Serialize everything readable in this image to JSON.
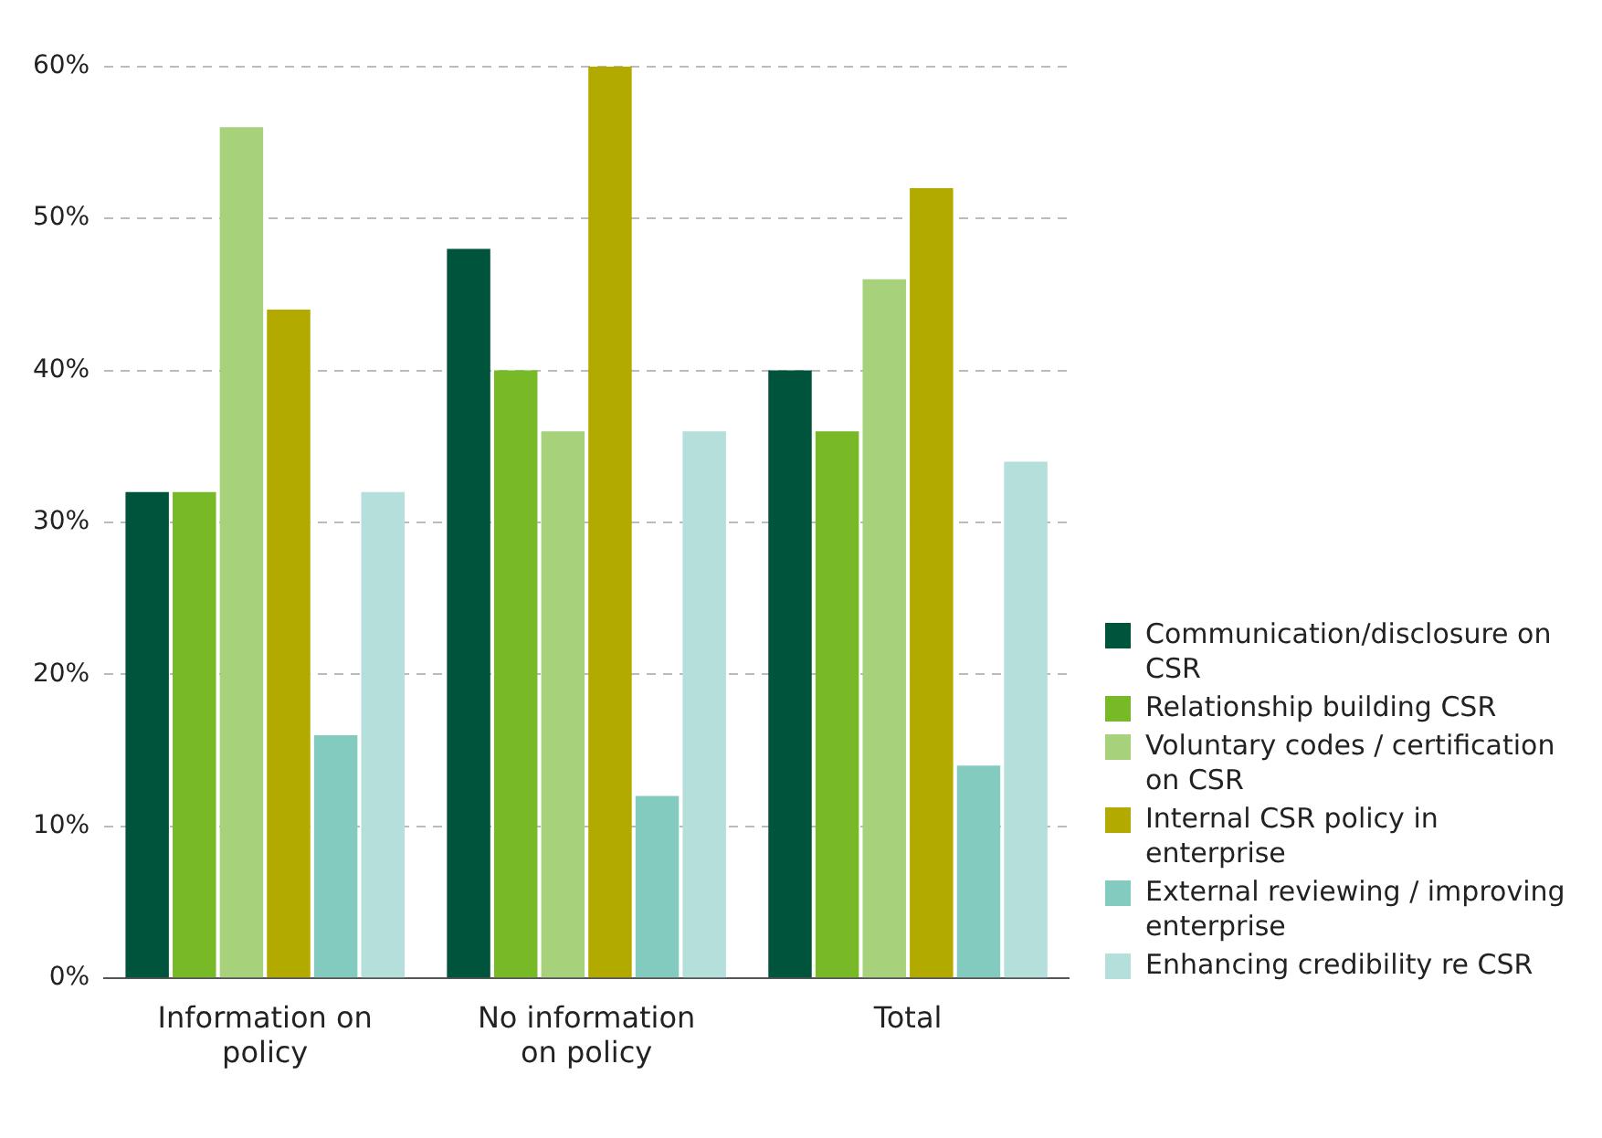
{
  "chart_data": {
    "type": "bar",
    "categories": [
      "Information on policy",
      "No information on policy",
      "Total"
    ],
    "series": [
      {
        "name": "Communication/disclosure on CSR",
        "color": "#00543c",
        "values": [
          32,
          48,
          40
        ]
      },
      {
        "name": "Relationship building CSR",
        "color": "#78b928",
        "values": [
          32,
          40,
          36
        ]
      },
      {
        "name": "Voluntary codes / certification on CSR",
        "color": "#a8d17c",
        "values": [
          56,
          36,
          46
        ]
      },
      {
        "name": "Internal CSR policy in enterprise",
        "color": "#b3aa00",
        "values": [
          44,
          60,
          52
        ]
      },
      {
        "name": "External reviewing / improving enterprise",
        "color": "#84cbbf",
        "values": [
          16,
          12,
          14
        ]
      },
      {
        "name": "Enhancing credibility re CSR",
        "color": "#b5dfdb",
        "values": [
          32,
          36,
          34
        ]
      }
    ],
    "ylim": [
      0,
      60
    ],
    "yticks": [
      {
        "value": 0,
        "label": "0%"
      },
      {
        "value": 10,
        "label": "10%"
      },
      {
        "value": 20,
        "label": "20%"
      },
      {
        "value": 30,
        "label": "30%"
      },
      {
        "value": 40,
        "label": "40%"
      },
      {
        "value": 50,
        "label": "50%"
      },
      {
        "value": 60,
        "label": "60%"
      }
    ],
    "grid": "y",
    "legend": "right"
  }
}
